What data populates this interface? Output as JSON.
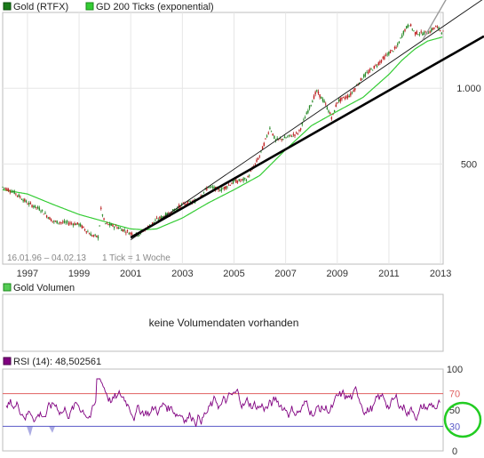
{
  "chart_data": {
    "type": "line",
    "main": {
      "legend": [
        {
          "name": "Gold (RTFX)",
          "color": "#1a7a1a"
        },
        {
          "name": "GD 200 Ticks (exponential)",
          "color": "#33cc33"
        }
      ],
      "y_scale": "log",
      "y_ticks": [
        500,
        1000
      ],
      "y_tick_labels": [
        "500",
        "1.000"
      ],
      "x_ticks": [
        1997,
        1999,
        2001,
        2003,
        2005,
        2007,
        2009,
        2011,
        2013
      ],
      "x_tick_labels": [
        "1997",
        "1999",
        "2001",
        "2003",
        "2005",
        "2007",
        "2009",
        "2011",
        "2013"
      ],
      "xlim": [
        1996.04,
        2013.1
      ],
      "ylim": [
        200,
        2000
      ],
      "range_label": "16.01.96 – 04.02.13",
      "interval_label": "1 Tick = 1 Woche",
      "price": {
        "x": [
          1996.04,
          1996.5,
          1997.0,
          1997.5,
          1998.0,
          1998.5,
          1999.0,
          1999.5,
          1999.75,
          1999.85,
          2000.0,
          2000.5,
          2001.0,
          2001.3,
          2001.5,
          2002.0,
          2002.5,
          2003.0,
          2003.5,
          2004.0,
          2004.5,
          2005.0,
          2005.5,
          2006.0,
          2006.4,
          2006.6,
          2007.0,
          2007.5,
          2008.0,
          2008.2,
          2008.5,
          2008.8,
          2009.0,
          2009.5,
          2010.0,
          2010.5,
          2011.0,
          2011.3,
          2011.6,
          2011.8,
          2012.0,
          2012.3,
          2012.6,
          2012.8,
          2013.1
        ],
        "y": [
          405,
          385,
          350,
          330,
          295,
          292,
          288,
          260,
          256,
          330,
          290,
          280,
          265,
          262,
          272,
          300,
          318,
          345,
          355,
          405,
          395,
          425,
          435,
          540,
          700,
          620,
          635,
          665,
          875,
          975,
          880,
          760,
          885,
          940,
          1110,
          1230,
          1380,
          1450,
          1700,
          1800,
          1660,
          1650,
          1680,
          1760,
          1670
        ]
      },
      "ma200": {
        "x": [
          1996.04,
          1997.0,
          1998.0,
          1999.0,
          2000.0,
          2000.5,
          2001.0,
          2001.5,
          2002.0,
          2003.0,
          2004.0,
          2005.0,
          2006.0,
          2007.0,
          2008.0,
          2009.0,
          2010.0,
          2011.0,
          2011.5,
          2012.0,
          2012.5,
          2013.1
        ],
        "y": [
          395,
          380,
          345,
          315,
          295,
          285,
          276,
          274,
          276,
          305,
          350,
          395,
          450,
          570,
          710,
          810,
          920,
          1135,
          1290,
          1430,
          1540,
          1600
        ]
      },
      "trendlines": [
        {
          "style": "thick-black",
          "x": [
            2001.0,
            2013.1
          ],
          "y": [
            255,
            1300
          ]
        },
        {
          "style": "thin-black",
          "x": [
            2001.0,
            2013.1
          ],
          "y": [
            250,
            1760
          ]
        },
        {
          "style": "thin-gray",
          "x": [
            2012.3,
            2013.1
          ],
          "y": [
            1550,
            2150
          ]
        }
      ]
    },
    "volume": {
      "legend": [
        {
          "name": "Gold Volumen",
          "color": "#55cc55"
        }
      ],
      "message": "keine Volumendaten vorhanden"
    },
    "rsi": {
      "legend": [
        {
          "name": "RSI (14): 48,502561",
          "color": "#800080"
        }
      ],
      "ylim": [
        0,
        100
      ],
      "y_ticks": [
        0,
        30,
        50,
        70,
        100
      ],
      "y_tick_labels": [
        "0",
        "30",
        "50",
        "70",
        "100"
      ],
      "reference_lines": [
        {
          "value": 70,
          "color": "#e06060"
        },
        {
          "value": 30,
          "color": "#5a5ac8"
        }
      ],
      "highlight_value": 50
    }
  }
}
